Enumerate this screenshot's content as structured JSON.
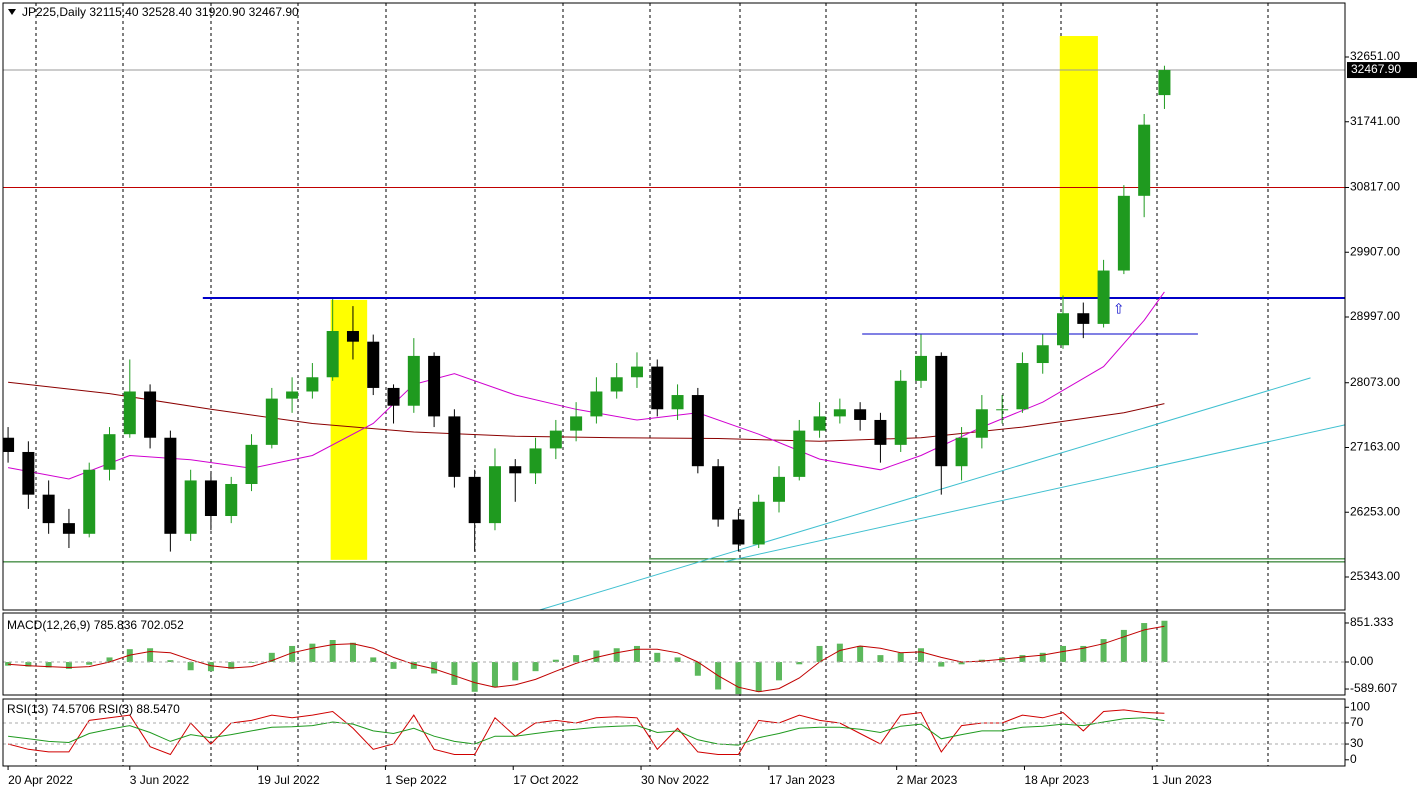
{
  "chart_data": [
    {
      "type": "candlestick",
      "title": "JP225,Daily  32115.40 32528.40 31920.90 32467.90",
      "xlim": [
        -0.25,
        65.9
      ],
      "ylim": [
        24879,
        33410
      ],
      "yticks": [
        {
          "value": 32651,
          "label": "32651.00"
        },
        {
          "value": 31741,
          "label": "31741.00"
        },
        {
          "value": 30817,
          "label": "30817.00"
        },
        {
          "value": 29907,
          "label": "29907.00"
        },
        {
          "value": 28997,
          "label": "28997.00"
        },
        {
          "value": 28073,
          "label": "28073.00"
        },
        {
          "value": 27163,
          "label": "27163.00"
        },
        {
          "value": 26253,
          "label": "26253.00"
        },
        {
          "value": 25343,
          "label": "25343.00"
        }
      ],
      "xticks": [
        {
          "value": 0,
          "label": "20 Apr 2022"
        },
        {
          "value": 6,
          "label": "3 Jun 2022"
        },
        {
          "value": 12.3,
          "label": "19 Jul 2022"
        },
        {
          "value": 18.6,
          "label": "1 Sep 2022"
        },
        {
          "value": 24.9,
          "label": "17 Oct 2022"
        },
        {
          "value": 31.2,
          "label": "30 Nov 2022"
        },
        {
          "value": 37.5,
          "label": "17 Jan 2023"
        },
        {
          "value": 43.8,
          "label": "2 Mar 2023"
        },
        {
          "value": 50.1,
          "label": "18 Apr 2023"
        },
        {
          "value": 56.4,
          "label": "1 Jun 2023"
        }
      ],
      "last_price": {
        "value": 32467.9,
        "label": "32467.90"
      },
      "bull_color": "#1f9a1f",
      "bear_color": "#000000",
      "open": [
        27300,
        27100,
        26500,
        26100,
        25950,
        26850,
        27350,
        27950,
        27300,
        25950,
        26700,
        26200,
        26650,
        27200,
        27850,
        27950,
        28150,
        28800,
        28650,
        28000,
        27750,
        28450,
        27600,
        26750,
        26100,
        26900,
        26800,
        27150,
        27400,
        27600,
        27950,
        28150,
        28300,
        27700,
        27900,
        26900,
        26150,
        25800,
        26400,
        26750,
        27400,
        27600,
        27700,
        27550,
        27200,
        28100,
        28450,
        26900,
        27300,
        27700,
        27700,
        28350,
        28600,
        29050,
        28900,
        29650,
        30700,
        32115.4
      ],
      "high": [
        27450,
        27250,
        26700,
        26300,
        26950,
        27450,
        28400,
        28050,
        27400,
        26850,
        26800,
        26750,
        27350,
        28000,
        28150,
        28350,
        29250,
        29150,
        28750,
        28050,
        28700,
        28500,
        27700,
        26850,
        27150,
        27000,
        27300,
        27550,
        27800,
        28150,
        28350,
        28500,
        28400,
        28050,
        28000,
        27000,
        26300,
        26500,
        26900,
        27550,
        27800,
        27850,
        27800,
        27650,
        28250,
        28750,
        28500,
        27450,
        27900,
        27900,
        28500,
        28750,
        29300,
        29200,
        29800,
        30850,
        31850,
        32528.4
      ],
      "low": [
        26950,
        26300,
        25950,
        25750,
        25900,
        26700,
        27300,
        27150,
        25700,
        25850,
        26000,
        26100,
        26550,
        27150,
        27650,
        27850,
        28100,
        28400,
        27900,
        27500,
        27650,
        27450,
        26600,
        25700,
        26000,
        26400,
        26650,
        27000,
        27250,
        27500,
        27850,
        28000,
        27600,
        27550,
        26800,
        26050,
        25700,
        25750,
        26250,
        26700,
        27300,
        27500,
        27400,
        26950,
        27100,
        28000,
        26500,
        26700,
        27150,
        27500,
        27650,
        28200,
        28550,
        28700,
        28850,
        29600,
        30400,
        31920.9
      ],
      "close": [
        27100,
        26500,
        26100,
        25950,
        26850,
        27350,
        27950,
        27300,
        25950,
        26700,
        26200,
        26650,
        27200,
        27850,
        27950,
        28150,
        28800,
        28650,
        28000,
        27750,
        28450,
        27600,
        26750,
        26100,
        26900,
        26800,
        27150,
        27400,
        27600,
        27950,
        28150,
        28300,
        27700,
        27900,
        26900,
        26150,
        25800,
        26400,
        26750,
        27400,
        27600,
        27700,
        27550,
        27200,
        28100,
        28450,
        26900,
        27300,
        27700,
        27700,
        28350,
        28600,
        29050,
        28900,
        29650,
        30700,
        31700,
        32467.9
      ],
      "moving_averages": [
        {
          "color": "#8b0000",
          "x": [
            0,
            5,
            10,
            15,
            20,
            25,
            30,
            35,
            40,
            45,
            50,
            55,
            57
          ],
          "values": [
            28080,
            27920,
            27700,
            27500,
            27380,
            27320,
            27300,
            27290,
            27250,
            27300,
            27450,
            27650,
            27780
          ]
        },
        {
          "color": "#d000d0",
          "x": [
            0,
            3,
            6,
            9,
            12,
            15,
            18,
            20,
            22,
            25,
            28,
            31,
            34,
            37,
            40,
            43,
            45,
            48,
            51,
            54,
            56,
            57
          ],
          "values": [
            26880,
            26720,
            27050,
            26990,
            26870,
            27050,
            27500,
            28050,
            28200,
            27900,
            27700,
            27550,
            27650,
            27350,
            27000,
            26850,
            27050,
            27450,
            27800,
            28300,
            28950,
            29350
          ]
        }
      ],
      "highlights": [
        {
          "color": "#ffff00",
          "x": [
            15.9,
            17.7
          ],
          "y": [
            25584,
            29237
          ]
        },
        {
          "color": "#ffff00",
          "x": [
            51.84,
            53.72
          ],
          "y": [
            29264,
            32946
          ]
        }
      ],
      "hlines": [
        {
          "color": "#999999",
          "value": 32467.9,
          "x": [
            -0.25,
            65.9
          ]
        },
        {
          "color": "#c00000",
          "value": 30817,
          "x": [
            -0.25,
            65.9
          ]
        },
        {
          "color": "#0000c8",
          "value": 29264,
          "x": [
            9.6,
            65.9
          ],
          "width": 2
        },
        {
          "color": "#0000c8",
          "value": 28758,
          "x": [
            42.1,
            58.65
          ]
        },
        {
          "color": "#006400",
          "value": 25556,
          "x": [
            -0.25,
            65.9
          ]
        },
        {
          "color": "#006400",
          "value": 25598,
          "x": [
            31.6,
            65.9
          ]
        }
      ],
      "trendlines": [
        {
          "color": "#40c0d0",
          "x": [
            26.2,
            64.2
          ],
          "y": [
            24879,
            28141
          ]
        },
        {
          "color": "#40c0d0",
          "x": [
            35.3,
            65.9
          ],
          "y": [
            25556,
            27481
          ]
        }
      ],
      "annotations": [
        {
          "text": "⇧",
          "color": "#0000c8",
          "x": 54.75,
          "y": 29096
        }
      ]
    },
    {
      "type": "macd",
      "title": "MACD(12,26,9) 785.836 702.052",
      "ylim": [
        -720,
        1069
      ],
      "yticks": [
        851.333,
        {
          "value": 0,
          "label": "0.00"
        },
        -589.607
      ],
      "histogram": {
        "color": "#5cb85c",
        "values": [
          -80,
          -100,
          -120,
          -150,
          -60,
          100,
          280,
          300,
          40,
          -180,
          -200,
          -150,
          -20,
          200,
          350,
          400,
          480,
          420,
          100,
          -150,
          -150,
          -250,
          -500,
          -650,
          -550,
          -400,
          -200,
          50,
          150,
          250,
          300,
          350,
          200,
          100,
          -300,
          -600,
          -700,
          -650,
          -400,
          -50,
          350,
          400,
          350,
          150,
          200,
          300,
          -100,
          -50,
          50,
          100,
          150,
          200,
          350,
          350,
          500,
          700,
          850,
          900
        ]
      },
      "signal": {
        "color": "#c00000",
        "values": [
          -50,
          -80,
          -100,
          -120,
          -100,
          0,
          150,
          230,
          200,
          50,
          -80,
          -130,
          -100,
          30,
          200,
          300,
          380,
          400,
          300,
          100,
          -50,
          -150,
          -300,
          -450,
          -550,
          -500,
          -380,
          -200,
          -30,
          100,
          200,
          280,
          280,
          200,
          0,
          -300,
          -550,
          -650,
          -580,
          -350,
          0,
          250,
          350,
          300,
          200,
          220,
          100,
          0,
          20,
          60,
          110,
          150,
          230,
          300,
          400,
          550,
          700,
          780
        ]
      }
    },
    {
      "type": "line",
      "title": "RSI(13) 74.5706  RSI(3) 88.5470",
      "ylim": [
        -11.8,
        115.7
      ],
      "yticks": [
        100,
        70,
        30,
        0
      ],
      "series": [
        {
          "color": "#d00000",
          "values": [
            30,
            20,
            15,
            15,
            75,
            80,
            85,
            25,
            10,
            70,
            30,
            70,
            75,
            85,
            80,
            85,
            92,
            60,
            20,
            30,
            85,
            20,
            10,
            10,
            80,
            45,
            70,
            75,
            70,
            80,
            82,
            80,
            20,
            60,
            15,
            10,
            10,
            75,
            70,
            85,
            75,
            70,
            50,
            30,
            85,
            90,
            15,
            65,
            70,
            70,
            85,
            80,
            90,
            55,
            92,
            95,
            90,
            88.547
          ]
        },
        {
          "color": "#1f9a1f",
          "values": [
            45,
            40,
            35,
            33,
            50,
            58,
            65,
            52,
            35,
            48,
            42,
            48,
            55,
            62,
            63,
            65,
            72,
            68,
            55,
            50,
            60,
            45,
            35,
            30,
            45,
            45,
            50,
            55,
            58,
            62,
            64,
            65,
            52,
            55,
            38,
            30,
            28,
            42,
            50,
            60,
            62,
            62,
            58,
            52,
            64,
            68,
            40,
            48,
            55,
            55,
            62,
            64,
            68,
            65,
            72,
            78,
            80,
            74.5706
          ]
        }
      ]
    }
  ]
}
